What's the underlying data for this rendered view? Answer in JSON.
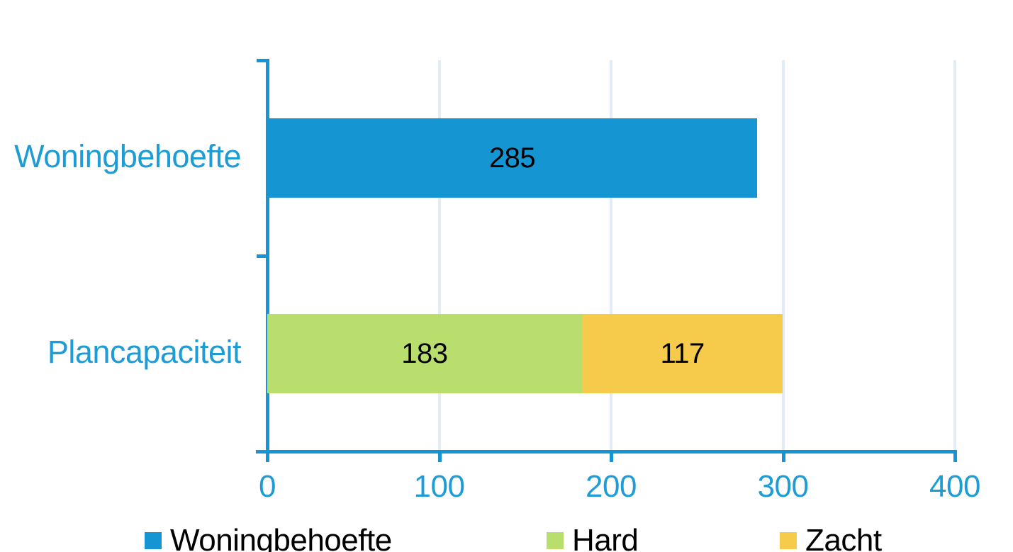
{
  "chart_data": {
    "type": "bar",
    "orientation": "horizontal",
    "title": "",
    "xlabel": "",
    "ylabel": "",
    "grid": true,
    "legend_position": "bottom",
    "categories": [
      "Woningbehoefte",
      "Plancapaciteit"
    ],
    "rows": [
      {
        "category": "Woningbehoefte",
        "segments": [
          {
            "series": "Woningbehoefte",
            "value": 285,
            "label": "285"
          }
        ]
      },
      {
        "category": "Plancapaciteit",
        "segments": [
          {
            "series": "Hard",
            "value": 183,
            "label": "183"
          },
          {
            "series": "Zacht",
            "value": 117,
            "label": "117"
          }
        ]
      }
    ],
    "series": [
      {
        "name": "Woningbehoefte",
        "color": "#1596D2"
      },
      {
        "name": "Hard",
        "color": "#BADE6D"
      },
      {
        "name": "Zacht",
        "color": "#F6CA4A"
      }
    ],
    "x_axis": {
      "min": 0,
      "max": 400,
      "ticks": [
        "0",
        "100",
        "200",
        "300",
        "400"
      ],
      "tick_values": [
        0,
        100,
        200,
        300,
        400
      ]
    },
    "legend": [
      {
        "label": "Woningbehoefte",
        "color": "#1596D2"
      },
      {
        "label": "Hard",
        "color": "#BADE6D"
      },
      {
        "label": "Zacht",
        "color": "#F6CA4A"
      }
    ]
  },
  "colors": {
    "axis": "#1596D2",
    "axis_text": "#1E9CD6",
    "category_text": "#1E9CD6",
    "gridline": "#E3EBF5",
    "data_label": "#000000",
    "legend_text": "#000000",
    "background": "#FFFFFF"
  }
}
